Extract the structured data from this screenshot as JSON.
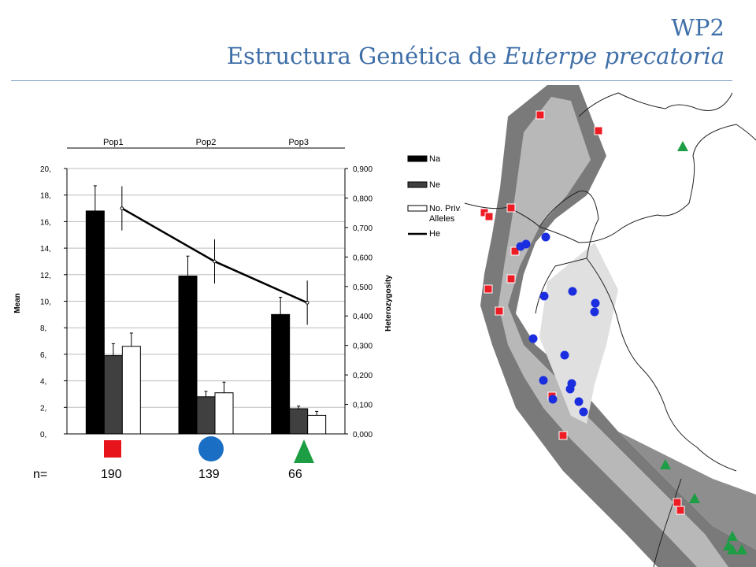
{
  "header": {
    "title_line1": "WP2",
    "title_line2_prefix": "Estructura Genética de ",
    "title_line2_species": "Euterpe precatoria"
  },
  "chart_data": {
    "type": "bar",
    "categories": [
      "Pop1",
      "Pop2",
      "Pop3"
    ],
    "series": [
      {
        "name": "Na",
        "axis": "left",
        "color": "#000000",
        "values": [
          16.8,
          11.9,
          9.0
        ],
        "errors": [
          1.9,
          1.5,
          1.3
        ]
      },
      {
        "name": "Ne",
        "axis": "left",
        "color": "#404040",
        "values": [
          5.9,
          2.8,
          1.9
        ],
        "errors": [
          0.9,
          0.4,
          0.2
        ]
      },
      {
        "name": "No. Private Alleles",
        "axis": "left",
        "color": "#ffffff",
        "values": [
          6.6,
          3.1,
          1.4
        ],
        "errors": [
          1.0,
          0.8,
          0.3
        ]
      },
      {
        "name": "He",
        "axis": "right",
        "type": "line",
        "color": "#000000",
        "values": [
          0.765,
          0.585,
          0.445
        ],
        "errors": [
          0.075,
          0.075,
          0.075
        ]
      }
    ],
    "ylabel": "Mean",
    "y2label": "Heterozygosity",
    "ylim": [
      0,
      20
    ],
    "y2lim": [
      0,
      0.9
    ],
    "yticks": [
      "0,",
      "2,",
      "4,",
      "6,",
      "8,",
      "10,",
      "12,",
      "14,",
      "16,",
      "18,",
      "20,"
    ],
    "y2ticks": [
      "0,000",
      "0,100",
      "0,200",
      "0,300",
      "0,400",
      "0,500",
      "0,600",
      "0,700",
      "0,800",
      "0,900"
    ],
    "legend_position": "right",
    "grid": true,
    "sample_prefix": "n=",
    "sample_sizes": [
      "190",
      "139",
      "66"
    ],
    "markers": [
      {
        "shape": "square",
        "color": "#e8141c"
      },
      {
        "shape": "circle",
        "color": "#1a6fc4"
      },
      {
        "shape": "triangle",
        "color": "#1e9e44"
      }
    ]
  },
  "map": {
    "marker_colors": {
      "Pop1": "#ee1c25",
      "Pop2": "#1a2ee0",
      "Pop3": "#1e9e44"
    }
  }
}
